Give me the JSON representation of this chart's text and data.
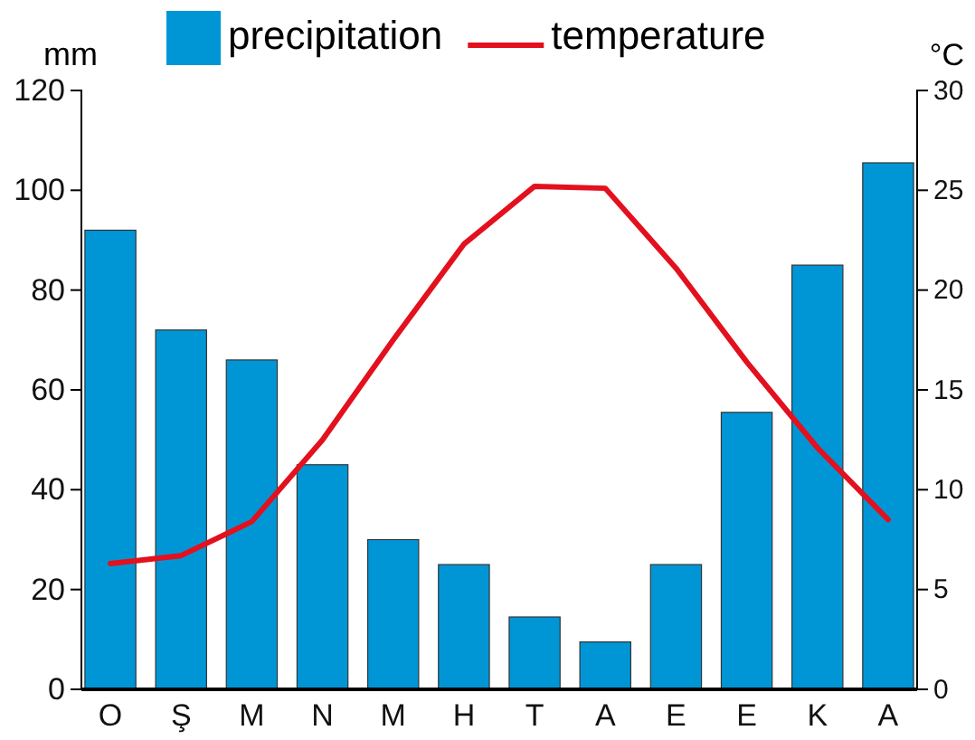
{
  "chart_data": {
    "type": "bar",
    "categories": [
      "O",
      "Ş",
      "M",
      "N",
      "M",
      "H",
      "T",
      "A",
      "E",
      "E",
      "K",
      "A"
    ],
    "series": [
      {
        "name": "precipitation",
        "color": "#0096d6",
        "values": [
          92,
          72,
          66,
          45,
          30,
          25,
          14.5,
          9.5,
          25,
          55.5,
          85,
          105.5
        ]
      },
      {
        "name": "temperature",
        "type": "line",
        "color": "#e3101e",
        "axis": "y2",
        "values": [
          6.3,
          6.7,
          8.4,
          12.5,
          17.5,
          22.3,
          25.2,
          25.1,
          21.1,
          16.4,
          12.1,
          8.5
        ]
      }
    ],
    "ylabel": "mm",
    "y2label": "°C",
    "ylim": [
      0,
      120
    ],
    "yticks": [
      0,
      20,
      40,
      60,
      80,
      100,
      120
    ],
    "y2lim": [
      0,
      30
    ],
    "y2ticks": [
      0,
      5,
      10,
      15,
      20,
      25,
      30
    ],
    "legend": "top",
    "grid": false,
    "marker": "none",
    "line_style": "solid"
  }
}
